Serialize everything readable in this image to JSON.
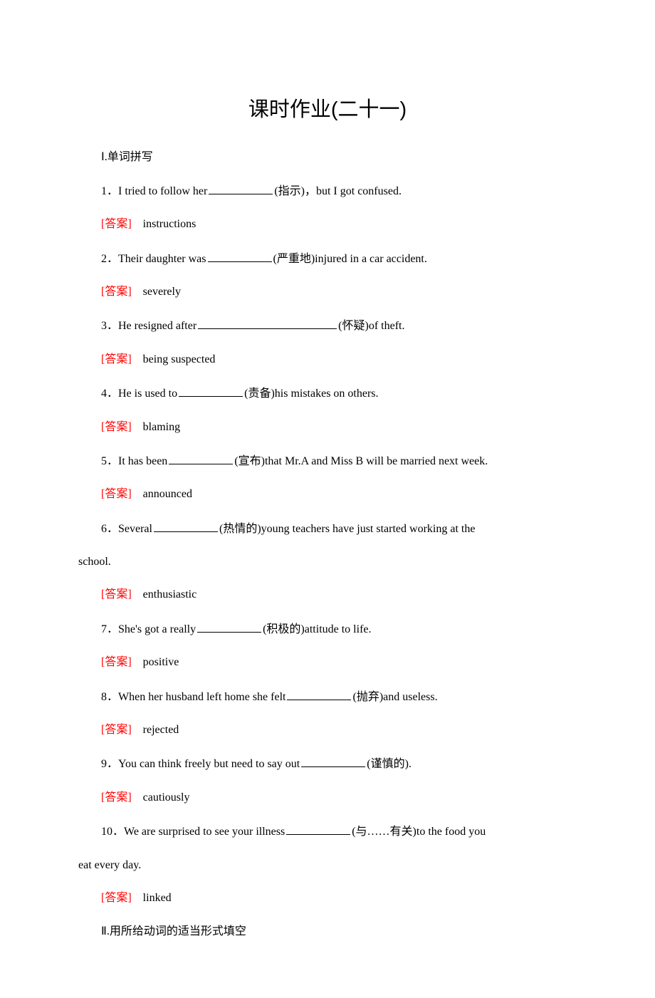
{
  "title": "课时作业(二十一)",
  "section1_header": "Ⅰ.单词拼写",
  "section2_header": "Ⅱ.用所给动词的适当形式填空",
  "answer_label": "[答案]",
  "q1_pre": "1．I tried to follow her",
  "q1_hint": "(指示)，but I got confused.",
  "a1": "instructions",
  "q2_pre": "2．Their daughter was",
  "q2_hint": "(严重地)injured in a car accident.",
  "a2": "severely",
  "q3_pre": "3．He resigned after",
  "q3_hint": "(怀疑)of theft.",
  "a3": "being suspected",
  "q4_pre": "4．He is used to",
  "q4_hint": "(责备)his mistakes on others.",
  "a4": "blaming",
  "q5_pre": "5．It has been",
  "q5_hint": "(宣布)that Mr.A and Miss B will be married next week.",
  "a5": "announced",
  "q6_pre": "6．Several",
  "q6_hint": "(热情的)young teachers have just started working at the",
  "q6_cont": "school.",
  "a6": "enthusiastic",
  "q7_pre": "7．She's got a really",
  "q7_hint": "(积极的)attitude to life.",
  "a7": "positive",
  "q8_pre": "8．When her husband left home she felt",
  "q8_hint": "(抛弃)and useless.",
  "a8": "rejected",
  "q9_pre": "9．You can think freely but need to say out",
  "q9_hint": "(谨慎的).",
  "a9": "cautiously",
  "q10_pre": "10．We are surprised to see your illness",
  "q10_hint": "(与……有关)to the food you",
  "q10_cont": "eat every day.",
  "a10": "linked"
}
